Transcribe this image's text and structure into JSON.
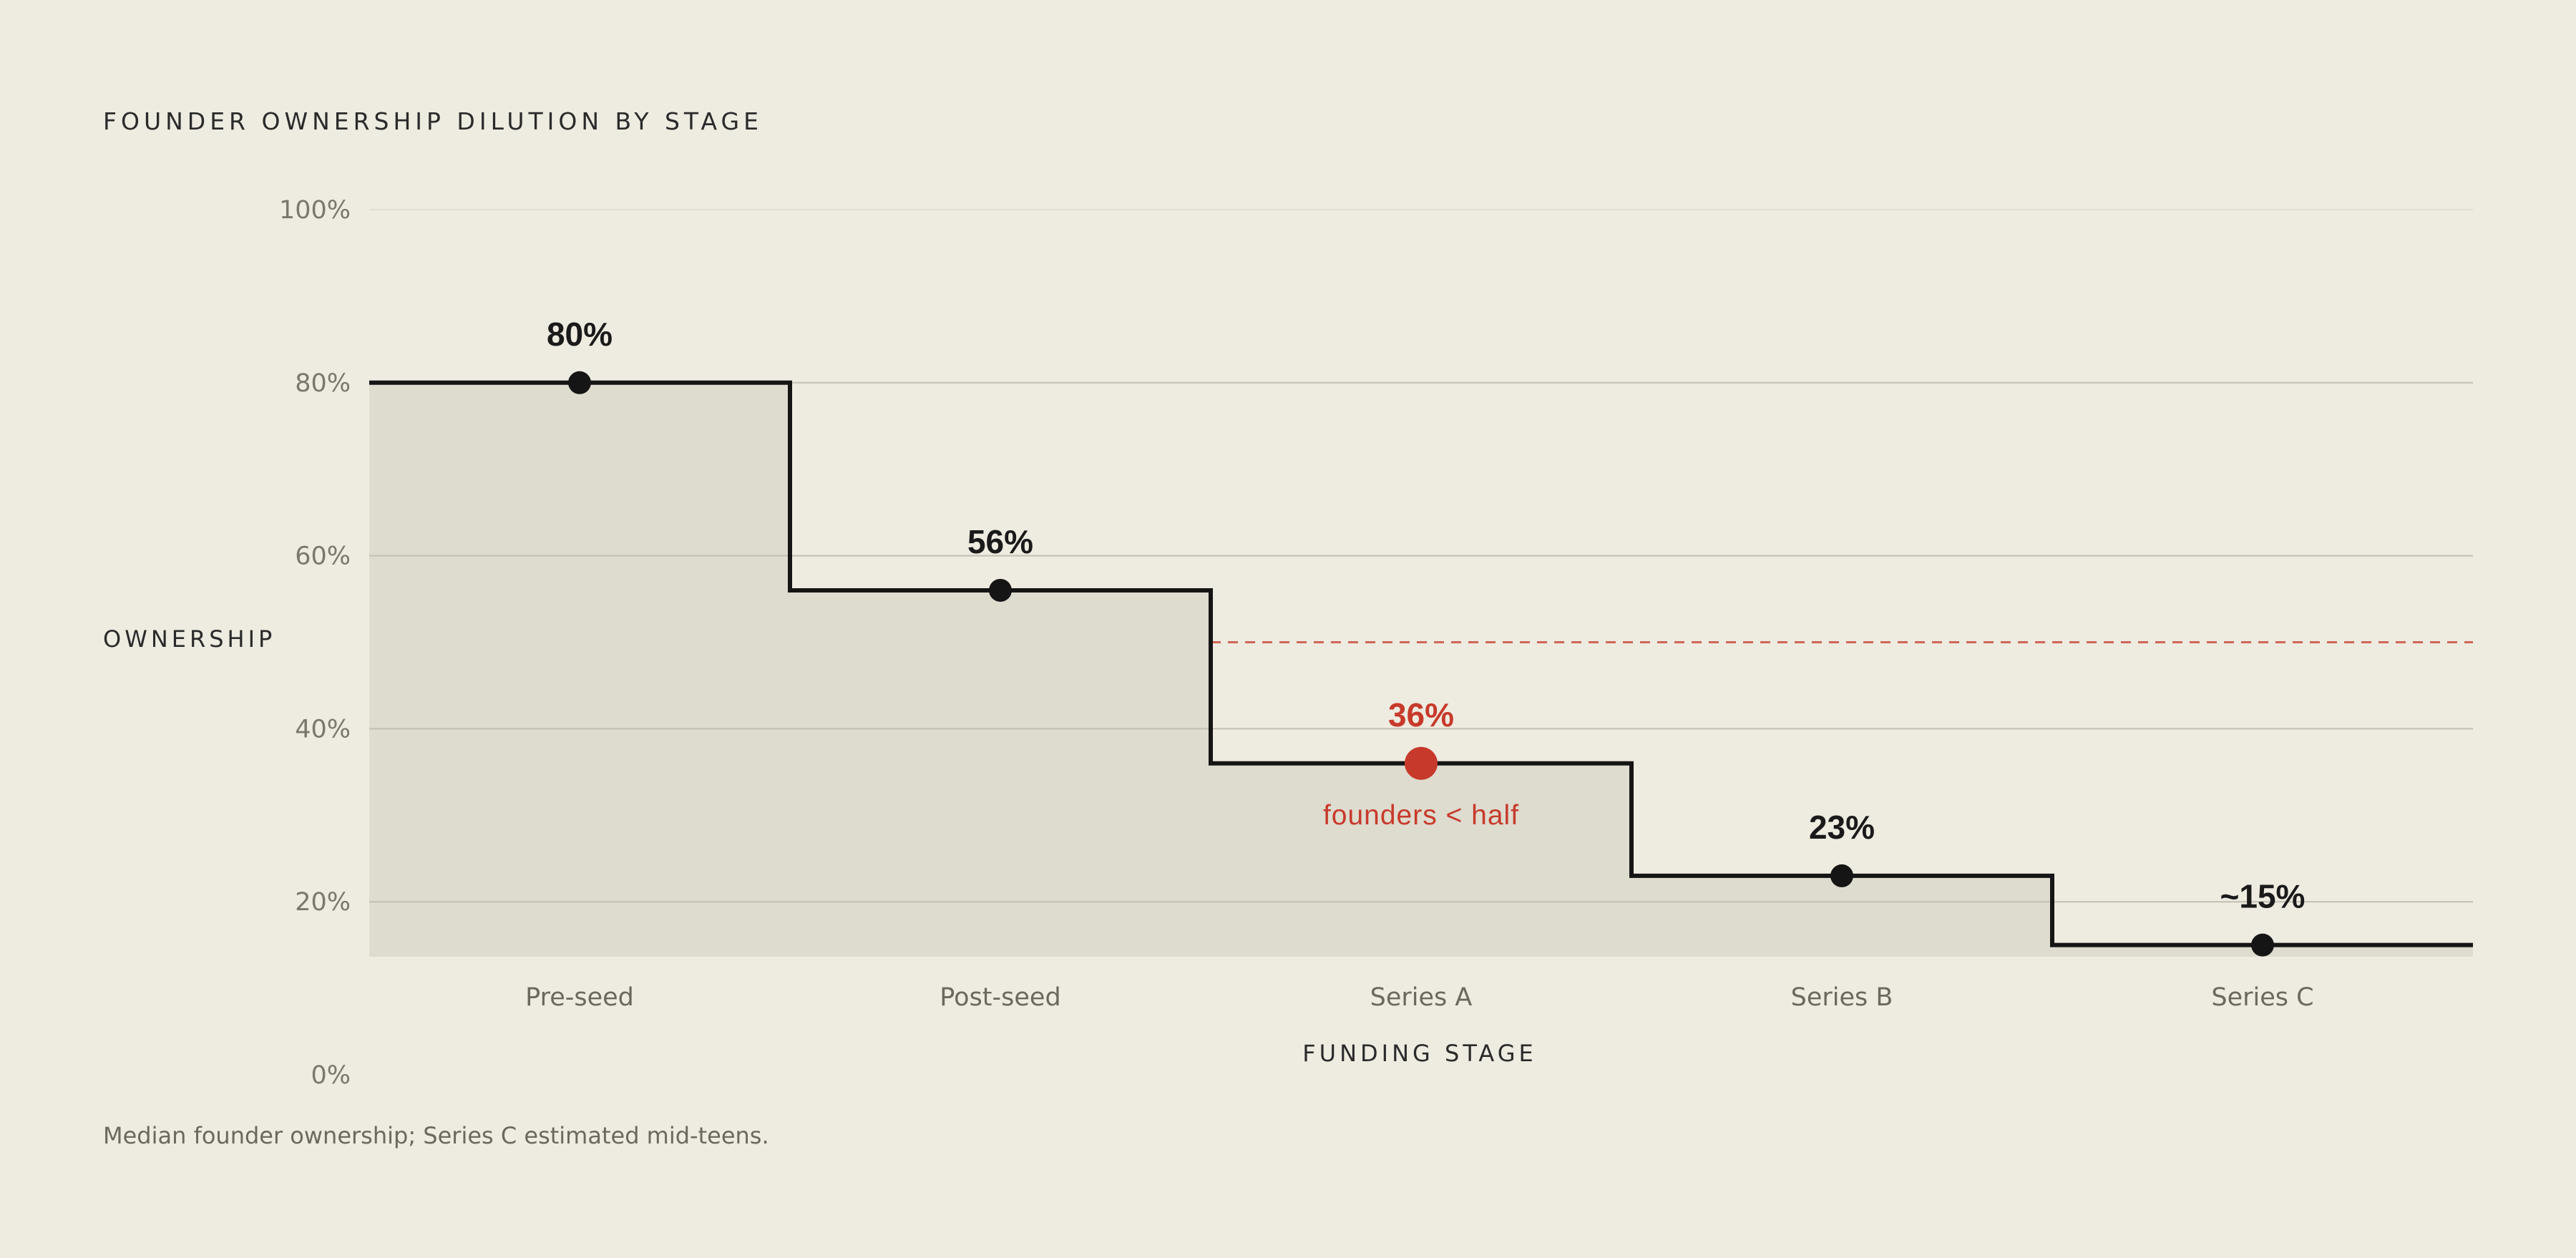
{
  "chart_data": {
    "type": "step-line",
    "title": "FOUNDER OWNERSHIP DILUTION BY STAGE",
    "xlabel": "FUNDING STAGE",
    "ylabel": "OWNERSHIP",
    "footnote": "Median founder ownership; Series C estimated mid-teens.",
    "categories": [
      "Pre-seed",
      "Post-seed",
      "Series A",
      "Series B",
      "Series C"
    ],
    "series": [
      {
        "values": [
          80,
          56,
          36,
          23,
          15
        ],
        "labels": [
          "80%",
          "56%",
          "36%",
          "23%",
          "~15%"
        ]
      }
    ],
    "highlight": {
      "index": 2,
      "annotation": "founders < half"
    },
    "reference_line": {
      "y": 50,
      "start_category": "Series A",
      "style": "dashed",
      "color": "#C73A2B"
    },
    "ylim": [
      0,
      100
    ],
    "yticks": [
      0,
      20,
      40,
      60,
      80,
      100
    ],
    "ytick_labels": [
      "0%",
      "20%",
      "40%",
      "60%",
      "80%",
      "100%"
    ],
    "gridlines": [
      20,
      40,
      60,
      80,
      100
    ],
    "grid": true,
    "area_fill": true,
    "colors": {
      "line": "#151515",
      "area": "#DEDBCF",
      "grid": "#C2BFB4",
      "highlight": "#C73A2B",
      "background": "#EEEBE0"
    }
  }
}
